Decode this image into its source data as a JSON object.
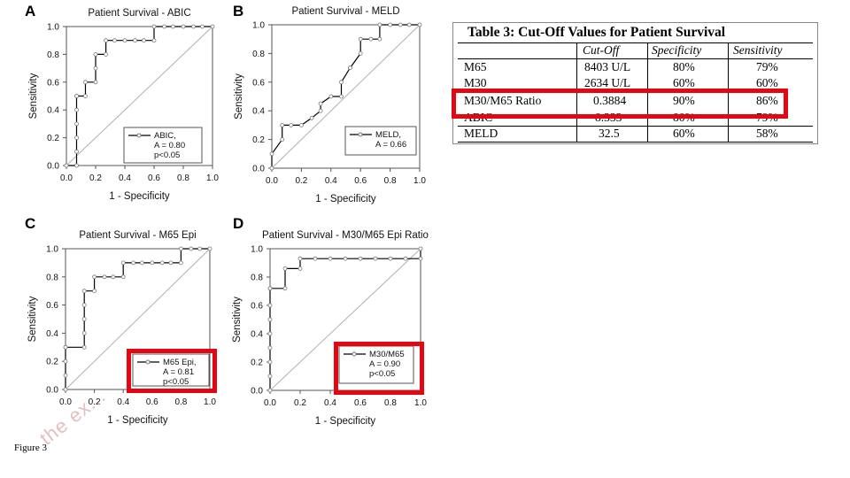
{
  "panels": {
    "a": "A",
    "b": "B",
    "c": "C",
    "d": "D"
  },
  "chart_data": [
    {
      "type": "line",
      "id": "abic",
      "title": "Patient Survival - ABIC",
      "xlabel": "1 - Specificity",
      "ylabel": "Sensitivity",
      "xlim": [
        0,
        1
      ],
      "ylim": [
        0,
        1
      ],
      "xticks": [
        "0.0",
        "0.2",
        "0.4",
        "0.6",
        "0.8",
        "1.0"
      ],
      "yticks": [
        "0.0",
        "0.2",
        "0.4",
        "0.6",
        "0.8",
        "1.0"
      ],
      "legend": {
        "line1": "ABIC,",
        "line2": "A = 0.80",
        "line3": "p<0.05"
      },
      "series": [
        {
          "name": "ABIC",
          "x": [
            0.0,
            0.07,
            0.07,
            0.07,
            0.07,
            0.07,
            0.07,
            0.07,
            0.13,
            0.13,
            0.2,
            0.2,
            0.2,
            0.27,
            0.27,
            0.33,
            0.4,
            0.47,
            0.53,
            0.6,
            0.6,
            0.67,
            0.73,
            0.8,
            0.87,
            0.93,
            1.0
          ],
          "y": [
            0.0,
            0.0,
            0.1,
            0.2,
            0.3,
            0.4,
            0.5,
            0.5,
            0.5,
            0.6,
            0.6,
            0.7,
            0.8,
            0.8,
            0.9,
            0.9,
            0.9,
            0.9,
            0.9,
            0.9,
            1.0,
            1.0,
            1.0,
            1.0,
            1.0,
            1.0,
            1.0
          ]
        }
      ]
    },
    {
      "type": "line",
      "id": "meld",
      "title": "Patient Survival - MELD",
      "xlabel": "1 - Specificity",
      "ylabel": "Sensitivity",
      "xlim": [
        0,
        1
      ],
      "ylim": [
        0,
        1
      ],
      "xticks": [
        "0.0",
        "0.2",
        "0.4",
        "0.6",
        "0.8",
        "1.0"
      ],
      "yticks": [
        "0.0",
        "0.2",
        "0.4",
        "0.6",
        "0.8",
        "1.0"
      ],
      "legend": {
        "line1": "MELD,",
        "line2": "A = 0.66",
        "line3": ""
      },
      "series": [
        {
          "name": "MELD",
          "x": [
            0.0,
            0.0,
            0.07,
            0.07,
            0.13,
            0.2,
            0.27,
            0.33,
            0.33,
            0.4,
            0.47,
            0.47,
            0.53,
            0.53,
            0.6,
            0.6,
            0.67,
            0.73,
            0.73,
            0.8,
            0.87,
            0.93,
            1.0
          ],
          "y": [
            0.0,
            0.1,
            0.2,
            0.3,
            0.3,
            0.3,
            0.35,
            0.4,
            0.45,
            0.5,
            0.5,
            0.6,
            0.7,
            0.7,
            0.8,
            0.9,
            0.9,
            0.9,
            1.0,
            1.0,
            1.0,
            1.0,
            1.0
          ]
        }
      ]
    },
    {
      "type": "line",
      "id": "m65",
      "title": "Patient Survival - M65 Epi",
      "xlabel": "1 - Specificity",
      "ylabel": "Sensitivity",
      "xlim": [
        0,
        1
      ],
      "ylim": [
        0,
        1
      ],
      "xticks": [
        "0.0",
        "0.2",
        "0.4",
        "0.6",
        "0.8",
        "1.0"
      ],
      "yticks": [
        "0.0",
        "0.2",
        "0.4",
        "0.6",
        "0.8",
        "1.0"
      ],
      "legend": {
        "line1": "M65 Epi,",
        "line2": "A = 0.81",
        "line3": "p<0.05"
      },
      "series": [
        {
          "name": "M65 Epi",
          "x": [
            0.0,
            0.0,
            0.0,
            0.0,
            0.0,
            0.13,
            0.13,
            0.13,
            0.13,
            0.13,
            0.2,
            0.2,
            0.27,
            0.33,
            0.4,
            0.4,
            0.47,
            0.53,
            0.6,
            0.67,
            0.73,
            0.8,
            0.8,
            0.87,
            0.93,
            1.0
          ],
          "y": [
            0.0,
            0.1,
            0.2,
            0.3,
            0.3,
            0.3,
            0.4,
            0.5,
            0.6,
            0.7,
            0.7,
            0.8,
            0.8,
            0.8,
            0.8,
            0.9,
            0.9,
            0.9,
            0.9,
            0.9,
            0.9,
            0.9,
            1.0,
            1.0,
            1.0,
            1.0
          ]
        }
      ]
    },
    {
      "type": "line",
      "id": "ratio",
      "title": "Patient Survival - M30/M65 Epi Ratio",
      "xlabel": "1 - Specificity",
      "ylabel": "Sensitivity",
      "xlim": [
        0,
        1
      ],
      "ylim": [
        0,
        1
      ],
      "xticks": [
        "0.0",
        "0.2",
        "0.4",
        "0.6",
        "0.8",
        "1.0"
      ],
      "yticks": [
        "0.0",
        "0.2",
        "0.4",
        "0.6",
        "0.8",
        "1.0"
      ],
      "legend": {
        "line1": "M30/M65",
        "line2": "A = 0.90",
        "line3": "p<0.05"
      },
      "series": [
        {
          "name": "M30/M65",
          "x": [
            0.0,
            0.0,
            0.0,
            0.0,
            0.0,
            0.0,
            0.0,
            0.0,
            0.0,
            0.1,
            0.1,
            0.2,
            0.2,
            0.3,
            0.4,
            0.5,
            0.6,
            0.7,
            0.8,
            0.9,
            1.0,
            1.0
          ],
          "y": [
            0.0,
            0.1,
            0.2,
            0.3,
            0.4,
            0.5,
            0.6,
            0.72,
            0.72,
            0.72,
            0.86,
            0.86,
            0.93,
            0.93,
            0.93,
            0.93,
            0.93,
            0.93,
            0.93,
            0.93,
            0.93,
            1.0
          ]
        }
      ]
    }
  ],
  "table": {
    "title": "Table 3: Cut-Off Values for Patient Survival",
    "headers": [
      "",
      "Cut-Off",
      "Specificity",
      "Sensitivity"
    ],
    "rows": [
      [
        "M65",
        "8403 U/L",
        "80%",
        "79%"
      ],
      [
        "M30",
        "2634 U/L",
        "60%",
        "60%"
      ],
      [
        "M30/M65 Ratio",
        "0.3884",
        "90%",
        "86%"
      ],
      [
        "ABIC",
        "8.333",
        "80%",
        "79%"
      ],
      [
        "MELD",
        "32.5",
        "60%",
        "58%"
      ]
    ]
  },
  "figure_label": "Figure 3",
  "watermark": "the ex...",
  "colors": {
    "highlight": "#e30613",
    "line": "#000000",
    "diagonal": "#b0b0b0"
  }
}
